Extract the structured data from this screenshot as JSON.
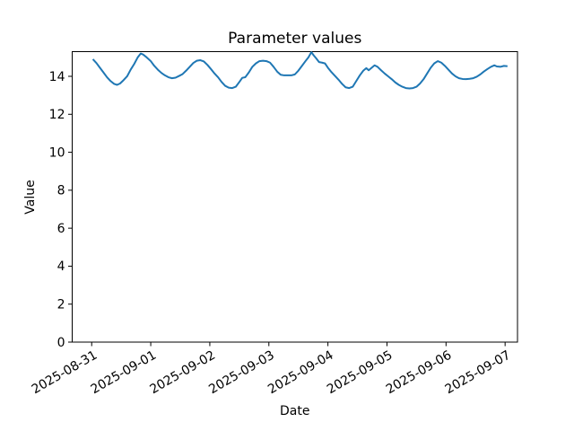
{
  "figure": {
    "background": "#ffffff",
    "text_color": "#000000"
  },
  "chart_data": {
    "type": "line",
    "title": "Parameter values",
    "xlabel": "Date",
    "ylabel": "Value",
    "grid": false,
    "legend": "none",
    "line_color": "#1f77b4",
    "x_tick_labels": [
      "2025-08-31",
      "2025-09-01",
      "2025-09-02",
      "2025-09-03",
      "2025-09-04",
      "2025-09-05",
      "2025-09-06",
      "2025-09-07"
    ],
    "x_tick_positions_days": [
      0,
      1,
      2,
      3,
      4,
      5,
      6,
      7
    ],
    "x_tick_rotation_deg": 30,
    "y_tick_labels": [
      "0",
      "2",
      "4",
      "6",
      "8",
      "10",
      "12",
      "14"
    ],
    "y_ticks": [
      0,
      2,
      4,
      6,
      8,
      10,
      12,
      14
    ],
    "xlim_days": [
      -0.33,
      7.21
    ],
    "ylim": [
      0,
      15.3
    ],
    "series": [
      {
        "name": "parameter-values",
        "x_days": [
          0.02,
          0.08,
          0.14,
          0.2,
          0.26,
          0.32,
          0.38,
          0.43,
          0.48,
          0.54,
          0.6,
          0.66,
          0.72,
          0.78,
          0.83,
          0.87,
          0.93,
          1.0,
          1.06,
          1.12,
          1.18,
          1.24,
          1.3,
          1.36,
          1.42,
          1.48,
          1.54,
          1.6,
          1.66,
          1.72,
          1.78,
          1.84,
          1.9,
          1.96,
          2.02,
          2.08,
          2.14,
          2.2,
          2.26,
          2.32,
          2.38,
          2.44,
          2.5,
          2.55,
          2.6,
          2.66,
          2.72,
          2.78,
          2.84,
          2.9,
          2.96,
          3.02,
          3.08,
          3.14,
          3.2,
          3.26,
          3.32,
          3.38,
          3.44,
          3.5,
          3.56,
          3.62,
          3.67,
          3.72,
          3.76,
          3.8,
          3.85,
          3.9,
          3.95,
          4.0,
          4.06,
          4.12,
          4.18,
          4.24,
          4.3,
          4.36,
          4.42,
          4.48,
          4.54,
          4.6,
          4.65,
          4.69,
          4.74,
          4.79,
          4.84,
          4.9,
          4.96,
          5.02,
          5.08,
          5.14,
          5.2,
          5.26,
          5.32,
          5.38,
          5.44,
          5.5,
          5.56,
          5.62,
          5.68,
          5.74,
          5.8,
          5.86,
          5.92,
          5.98,
          6.04,
          6.1,
          6.16,
          6.22,
          6.28,
          6.34,
          6.4,
          6.46,
          6.52,
          6.58,
          6.64,
          6.7,
          6.76,
          6.82,
          6.86,
          6.92,
          6.98,
          7.04
        ],
        "values": [
          14.9,
          14.7,
          14.45,
          14.2,
          13.95,
          13.75,
          13.6,
          13.55,
          13.62,
          13.8,
          14.0,
          14.35,
          14.65,
          15.0,
          15.2,
          15.15,
          15.0,
          14.8,
          14.55,
          14.35,
          14.18,
          14.05,
          13.95,
          13.9,
          13.93,
          14.02,
          14.12,
          14.3,
          14.5,
          14.7,
          14.82,
          14.85,
          14.78,
          14.6,
          14.38,
          14.15,
          13.95,
          13.7,
          13.5,
          13.4,
          13.38,
          13.45,
          13.7,
          13.92,
          13.95,
          14.2,
          14.5,
          14.68,
          14.8,
          14.82,
          14.8,
          14.72,
          14.5,
          14.25,
          14.08,
          14.05,
          14.05,
          14.05,
          14.1,
          14.3,
          14.55,
          14.8,
          15.0,
          15.27,
          15.1,
          14.95,
          14.75,
          14.72,
          14.68,
          14.45,
          14.22,
          14.02,
          13.82,
          13.6,
          13.42,
          13.38,
          13.45,
          13.75,
          14.05,
          14.3,
          14.43,
          14.32,
          14.45,
          14.58,
          14.5,
          14.32,
          14.15,
          14.0,
          13.85,
          13.68,
          13.55,
          13.45,
          13.38,
          13.36,
          13.38,
          13.45,
          13.62,
          13.85,
          14.15,
          14.45,
          14.68,
          14.8,
          14.72,
          14.55,
          14.35,
          14.15,
          14.0,
          13.9,
          13.86,
          13.85,
          13.87,
          13.9,
          13.98,
          14.1,
          14.25,
          14.38,
          14.5,
          14.58,
          14.52,
          14.5,
          14.55,
          14.53
        ]
      }
    ]
  }
}
